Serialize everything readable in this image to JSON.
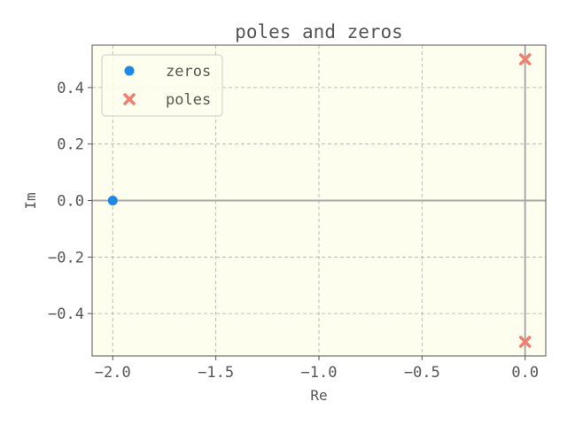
{
  "chart_data": {
    "type": "scatter",
    "title": "poles and zeros",
    "xlabel": "Re",
    "ylabel": "Im",
    "xlim": [
      -2.1,
      0.1
    ],
    "ylim": [
      -0.55,
      0.55
    ],
    "xticks": [
      -2.0,
      -1.5,
      -1.0,
      -0.5,
      0.0
    ],
    "xtick_labels": [
      "−2.0",
      "−1.5",
      "−1.0",
      "−0.5",
      "0.0"
    ],
    "yticks": [
      0.4,
      0.2,
      0.0,
      -0.2,
      -0.4
    ],
    "ytick_labels": [
      "0.4",
      "0.2",
      "0.0",
      "−0.2",
      "−0.4"
    ],
    "grid": true,
    "legend_position": "upper-left",
    "series": [
      {
        "name": "zeros",
        "marker": "circle",
        "color": "#1e88e5",
        "points": [
          [
            -2.0,
            0.0
          ]
        ]
      },
      {
        "name": "poles",
        "marker": "x",
        "color": "#f08070",
        "points": [
          [
            0.0,
            0.5
          ],
          [
            0.0,
            -0.5
          ]
        ]
      }
    ]
  },
  "colors": {
    "plot_background": "#fefeee",
    "axis_line": "#aaaaaa",
    "grid": "#aaaaaa",
    "frame": "#555555",
    "text": "#555555"
  }
}
